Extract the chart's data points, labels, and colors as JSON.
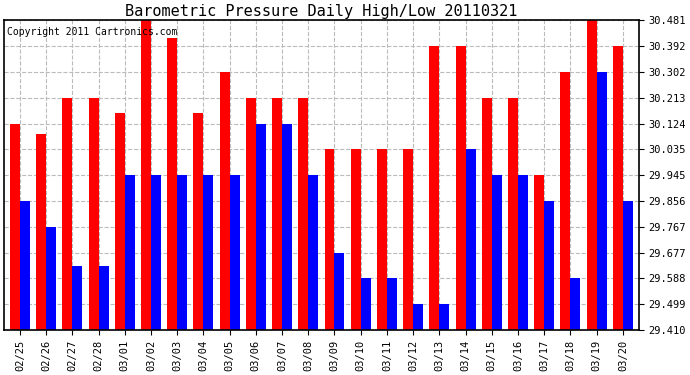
{
  "title": "Barometric Pressure Daily High/Low 20110321",
  "copyright": "Copyright 2011 Cartronics.com",
  "dates": [
    "02/25",
    "02/26",
    "02/27",
    "02/28",
    "03/01",
    "03/02",
    "03/03",
    "03/04",
    "03/05",
    "03/06",
    "03/07",
    "03/08",
    "03/09",
    "03/10",
    "03/11",
    "03/12",
    "03/13",
    "03/14",
    "03/15",
    "03/16",
    "03/17",
    "03/18",
    "03/19",
    "03/20"
  ],
  "highs": [
    30.124,
    30.089,
    30.213,
    30.213,
    30.16,
    30.481,
    30.42,
    30.16,
    30.302,
    30.213,
    30.213,
    30.213,
    30.035,
    30.035,
    30.035,
    30.035,
    30.392,
    30.392,
    30.213,
    30.213,
    29.945,
    30.302,
    30.481,
    30.392
  ],
  "lows": [
    29.856,
    29.767,
    29.63,
    29.63,
    29.945,
    29.945,
    29.945,
    29.945,
    29.945,
    30.124,
    30.124,
    29.945,
    29.677,
    29.588,
    29.588,
    29.499,
    29.499,
    30.035,
    29.945,
    29.945,
    29.856,
    29.588,
    30.302,
    29.856
  ],
  "ymin": 29.41,
  "ymax": 30.481,
  "yticks": [
    29.41,
    29.499,
    29.588,
    29.677,
    29.767,
    29.856,
    29.945,
    30.035,
    30.124,
    30.213,
    30.302,
    30.392,
    30.481
  ],
  "high_color": "#ff0000",
  "low_color": "#0000ff",
  "bg_color": "#ffffff",
  "grid_color": "#bbbbbb",
  "title_fontsize": 11,
  "copyright_fontsize": 7,
  "tick_fontsize": 7.5,
  "bar_width": 0.38
}
